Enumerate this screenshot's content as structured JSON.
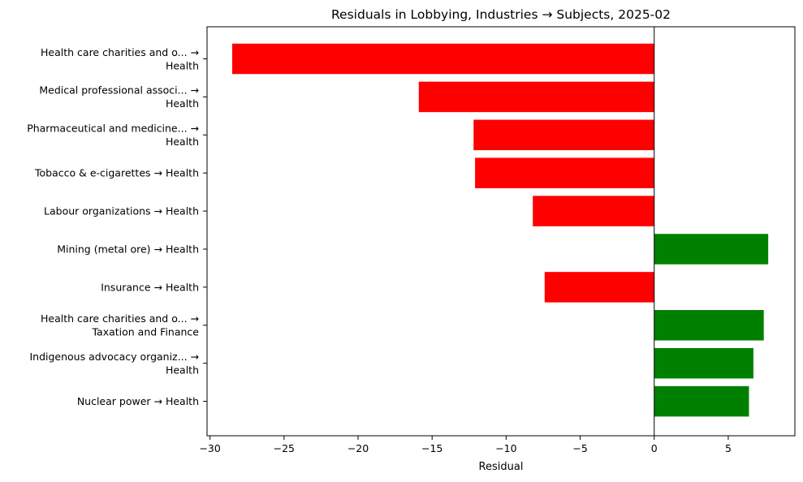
{
  "chart_data": {
    "type": "bar",
    "orientation": "horizontal",
    "title": "Residuals in Lobbying, Industries → Subjects, 2025-02",
    "xlabel": "Residual",
    "ylabel": "",
    "xlim": [
      -30.2,
      9.5
    ],
    "xticks": [
      -30,
      -25,
      -20,
      -15,
      -10,
      -5,
      0,
      5
    ],
    "xtick_labels": [
      "−30",
      "−25",
      "−20",
      "−15",
      "−10",
      "−5",
      "0",
      "5"
    ],
    "grid": false,
    "legend": "none",
    "zero_line": true,
    "colors": {
      "negative": "#ff0000",
      "positive": "#008000",
      "axis": "#000000"
    },
    "categories": [
      [
        "Health care charities and o... →",
        "Health"
      ],
      [
        "Medical professional associ... →",
        "Health"
      ],
      [
        "Pharmaceutical and medicine... →",
        "Health"
      ],
      [
        "Tobacco & e-cigarettes → Health"
      ],
      [
        "Labour organizations → Health"
      ],
      [
        "Mining (metal ore) → Health"
      ],
      [
        "Insurance → Health"
      ],
      [
        "Health care charities and o... →",
        "Taxation and Finance"
      ],
      [
        "Indigenous advocacy organiz... →",
        "Health"
      ],
      [
        "Nuclear power → Health"
      ]
    ],
    "values": [
      -28.5,
      -15.9,
      -12.2,
      -12.1,
      -8.2,
      7.7,
      -7.4,
      7.4,
      6.7,
      6.4
    ]
  }
}
